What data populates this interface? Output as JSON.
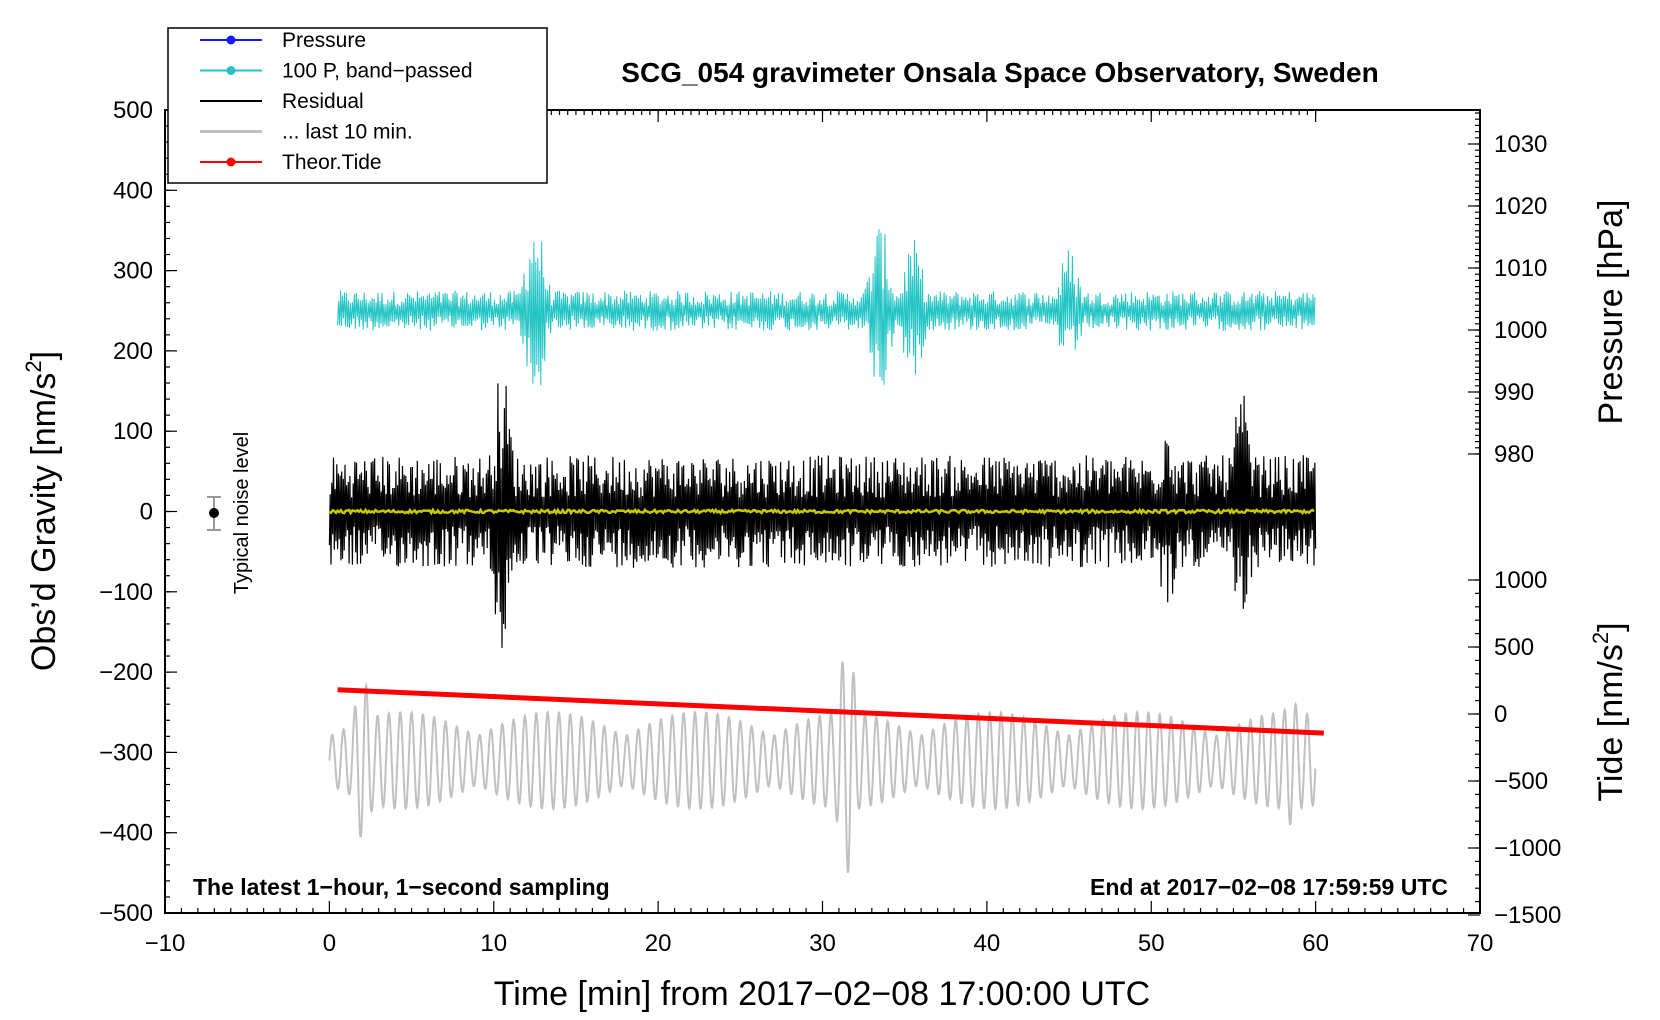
{
  "chart_data": {
    "type": "line",
    "title": "SCG_054 gravimeter Onsala Space Observatory, Sweden",
    "xlabel": "Time [min] from 2017−02−08 17:00:00 UTC",
    "ylabel_left": "Obs’d Gravity [nm/s",
    "ylabel_left_sup": "2",
    "ylabel_left_close": "]",
    "ylabel_right_top": "Pressure [hPa]",
    "ylabel_right_bottom": "Tide [nm/s",
    "ylabel_right_bottom_sup": "2",
    "ylabel_right_bottom_close": "]",
    "xlim": [
      -10,
      70
    ],
    "ylim": [
      -500,
      500
    ],
    "x_ticks": [
      "−10",
      "0",
      "10",
      "20",
      "30",
      "40",
      "50",
      "60",
      "70"
    ],
    "y_ticks": [
      "500",
      "400",
      "300",
      "200",
      "100",
      "0",
      "−100",
      "−200",
      "−300",
      "−400",
      "−500"
    ],
    "pressure_ticks": [
      "1030",
      "1020",
      "1010",
      "1000",
      "990",
      "980"
    ],
    "tide_ticks": [
      "1000",
      "500",
      "0",
      "−500",
      "−1000",
      "−1500"
    ],
    "legend": [
      {
        "label": "Pressure",
        "color": "#1a1aff",
        "marker": true
      },
      {
        "label": "100 P, band−passed",
        "color": "#22c4c4",
        "marker": true
      },
      {
        "label": "Residual",
        "color": "#000000",
        "marker": false
      },
      {
        "label": "... last 10 min.",
        "color": "#c0c0c0",
        "marker": false
      },
      {
        "label": "Theor.Tide",
        "color": "#ff0000",
        "marker": true
      }
    ],
    "series": [
      {
        "name": "100 P, band-passed",
        "color": "#22c4c4",
        "x_range": [
          0.5,
          60
        ],
        "center": 250,
        "base_amp": 25,
        "bursts": [
          {
            "x": 12.5,
            "amp": 120
          },
          {
            "x": 33.5,
            "amp": 110
          },
          {
            "x": 35.5,
            "amp": 90
          },
          {
            "x": 45,
            "amp": 80
          }
        ]
      },
      {
        "name": "Residual",
        "color": "#000000",
        "x_range": [
          0,
          60
        ],
        "center": 0,
        "base_amp": 70,
        "bursts": [
          {
            "x": 10.5,
            "amp": 180
          },
          {
            "x": 51,
            "amp": 130
          },
          {
            "x": 55.5,
            "amp": 150
          }
        ]
      },
      {
        "name": "Residual (smoothed)",
        "color": "#c8c800",
        "x_range": [
          0,
          60
        ],
        "center": 0
      },
      {
        "name": "... last 10 min.",
        "color": "#c0c0c0",
        "x_range": [
          0,
          60
        ],
        "center": -310,
        "base_amp": 60,
        "bursts": [
          {
            "x": 2,
            "amp": 120
          },
          {
            "x": 31.5,
            "amp": 140
          },
          {
            "x": 58.5,
            "amp": 80
          }
        ]
      },
      {
        "name": "Theor.Tide",
        "color": "#ff0000",
        "x": [
          0.5,
          60.5
        ],
        "y": [
          -222,
          -276
        ]
      }
    ],
    "noise_marker": {
      "x": -7,
      "y": 0,
      "err": 20,
      "label": "Typical noise level"
    },
    "annotations": {
      "bottom_left": "The latest 1−hour, 1−second sampling",
      "bottom_right": "End at 2017−02−08 17:59:59 UTC"
    }
  }
}
